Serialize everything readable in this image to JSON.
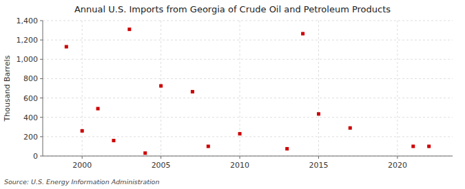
{
  "chart_data": {
    "type": "scatter",
    "title": "Annual U.S. Imports from Georgia of Crude Oil and Petroleum Products",
    "y_label": "Thousand Barrels",
    "annotations": [
      "Source: U.S. Energy Information Administration"
    ],
    "x": [
      1999,
      2000,
      2001,
      2002,
      2003,
      2004,
      2005,
      2007,
      2008,
      2010,
      2013,
      2014,
      2015,
      2017,
      2021,
      2022
    ],
    "values": [
      1130,
      260,
      490,
      160,
      1310,
      30,
      725,
      665,
      100,
      230,
      75,
      1265,
      435,
      290,
      100,
      100
    ],
    "color": "#cc0000",
    "marker": "square",
    "xlim": [
      1997.5,
      2023.5
    ],
    "ylim": [
      0,
      1400
    ],
    "xticks": [
      2000,
      2005,
      2010,
      2015,
      2020
    ],
    "yticks": [
      0,
      200,
      400,
      600,
      800,
      {
        "value": 1000,
        "label": "1,000"
      },
      {
        "value": 1200,
        "label": "1,200"
      },
      {
        "value": 1400,
        "label": "1,400"
      }
    ],
    "grid": true
  }
}
